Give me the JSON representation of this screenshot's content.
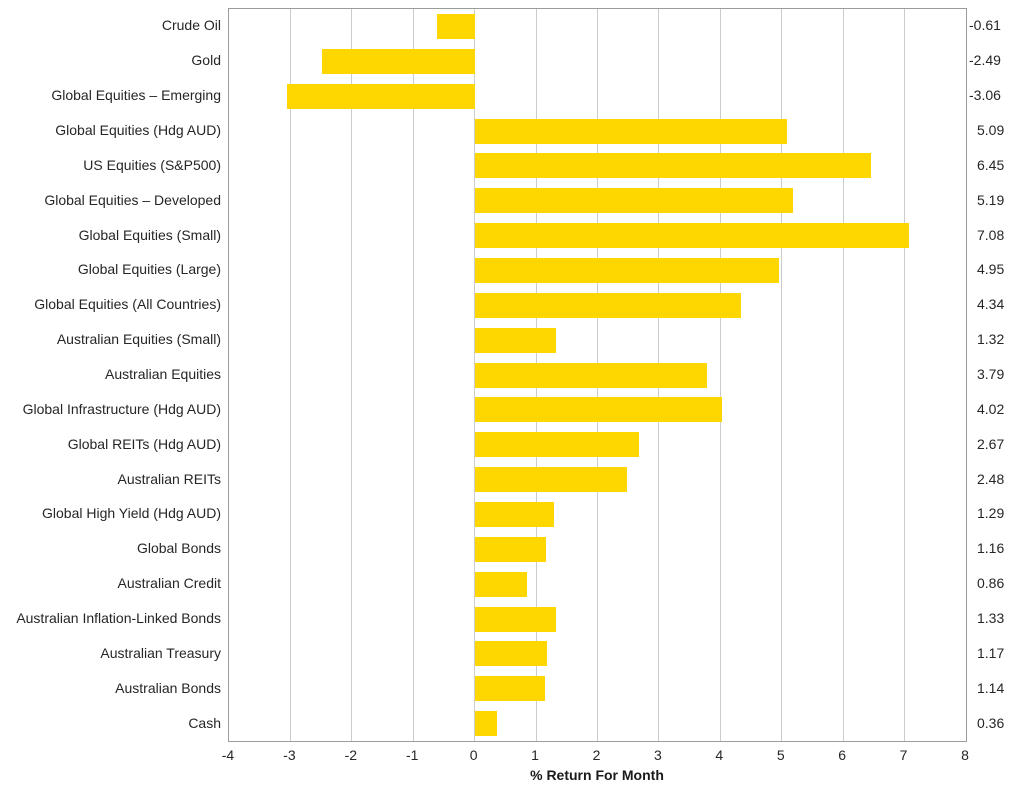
{
  "chart_data": {
    "type": "bar",
    "orientation": "horizontal",
    "title": "",
    "xlabel": "% Return For Month",
    "ylabel": "",
    "xlim": [
      -4,
      8
    ],
    "xticks": [
      -4,
      -3,
      -2,
      -1,
      0,
      1,
      2,
      3,
      4,
      5,
      6,
      7,
      8
    ],
    "grid": true,
    "legend": "none",
    "bar_color": "#FFD700",
    "categories": [
      "Crude Oil",
      "Gold",
      "Global Equities – Emerging",
      "Global Equities (Hdg AUD)",
      "US Equities (S&P500)",
      "Global Equities – Developed",
      "Global Equities (Small)",
      "Global Equities (Large)",
      "Global Equities (All Countries)",
      "Australian Equities (Small)",
      "Australian Equities",
      "Global Infrastructure (Hdg AUD)",
      "Global REITs (Hdg AUD)",
      "Australian REITs",
      "Global High Yield (Hdg AUD)",
      "Global Bonds",
      "Australian Credit",
      "Australian Inflation-Linked Bonds",
      "Australian Treasury",
      "Australian Bonds",
      "Cash"
    ],
    "values": [
      -0.61,
      -2.49,
      -3.06,
      5.09,
      6.45,
      5.19,
      7.08,
      4.95,
      4.34,
      1.32,
      3.79,
      4.02,
      2.67,
      2.48,
      1.29,
      1.16,
      0.86,
      1.33,
      1.17,
      1.14,
      0.36
    ],
    "value_labels": [
      "-0.61",
      "-2.49",
      "-3.06",
      "5.09",
      "6.45",
      "5.19",
      "7.08",
      "4.95",
      "4.34",
      "1.32",
      "3.79",
      "4.02",
      "2.67",
      "2.48",
      "1.29",
      "1.16",
      "0.86",
      "1.33",
      "1.17",
      "1.14",
      "0.36"
    ]
  }
}
